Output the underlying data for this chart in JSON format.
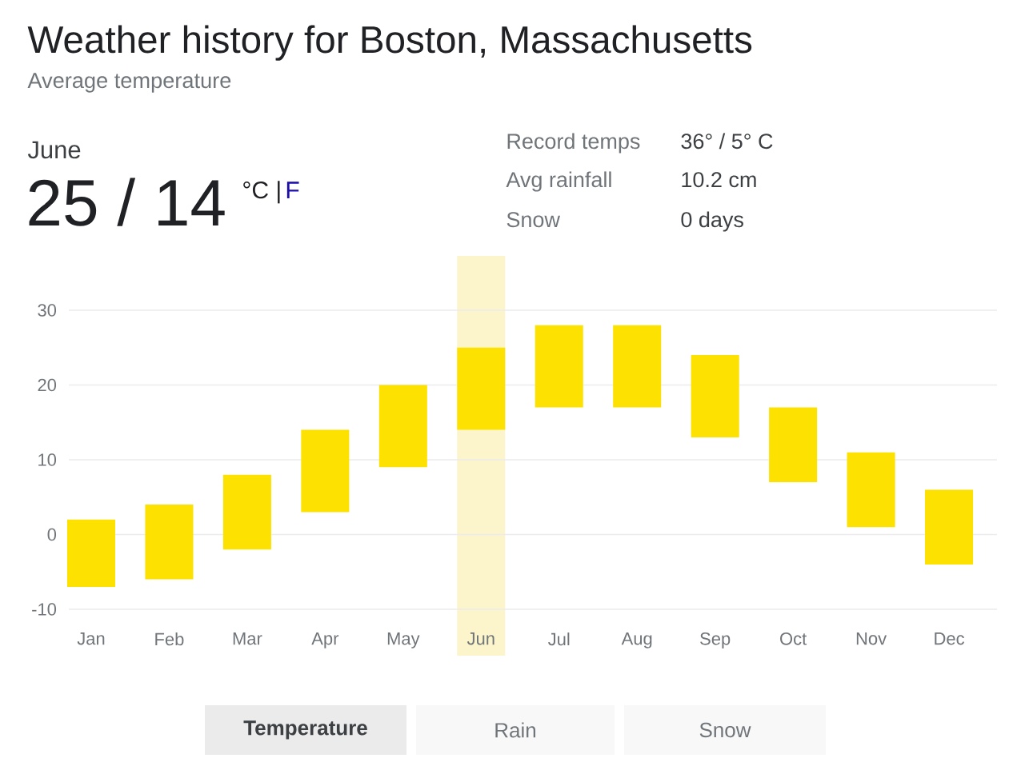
{
  "chart_data": {
    "type": "bar",
    "title": "Weather history for Boston, Massachusetts",
    "subtitle": "Average temperature",
    "categories": [
      "Jan",
      "Feb",
      "Mar",
      "Apr",
      "May",
      "Jun",
      "Jul",
      "Aug",
      "Sep",
      "Oct",
      "Nov",
      "Dec"
    ],
    "base": [
      -7,
      -6,
      -2,
      3,
      9,
      14,
      17,
      17,
      13,
      7,
      1,
      -4
    ],
    "values": [
      9,
      10,
      10,
      11,
      11,
      11,
      11,
      11,
      11,
      10,
      10,
      10
    ],
    "color": "#fde100",
    "ylim": [
      -10,
      30
    ],
    "yticks": [
      -10,
      0,
      10,
      20,
      30
    ],
    "grid": "y",
    "bands": [
      {
        "axis": "x",
        "from": "Jun",
        "to": "Jun",
        "color": "#fcf5cc"
      }
    ],
    "annotations": [
      "June",
      "25 / 14",
      "°C",
      "|",
      "F",
      "Record temps",
      "36° / 5° C",
      "Avg rainfall",
      "10.2 cm",
      "Snow",
      "0 days",
      "Temperature",
      "Rain",
      "Snow"
    ]
  }
}
